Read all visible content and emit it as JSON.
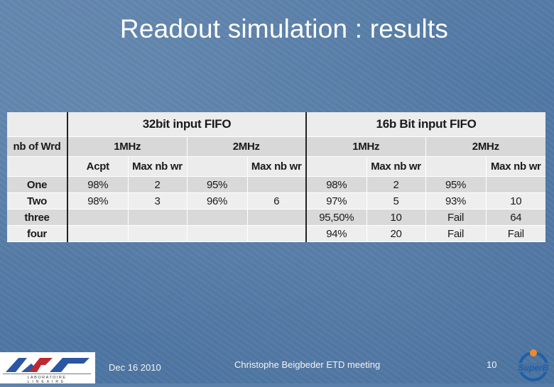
{
  "slide": {
    "title": "Readout simulation : results"
  },
  "table": {
    "group_headers": [
      "32bit input FIFO",
      "16b Bit input FIFO"
    ],
    "row_label_header": "nb of Wrd",
    "freq_headers": [
      "1MHz",
      "2MHz",
      "1MHz",
      "2MHz"
    ],
    "sub_headers": [
      "Acpt",
      "Max nb wr",
      "",
      "Max nb wr",
      "",
      "Max nb wr",
      "",
      "Max nb wr"
    ],
    "rows": [
      {
        "label": "One",
        "cells": [
          "98%",
          "2",
          "95%",
          "",
          "98%",
          "2",
          "95%",
          ""
        ]
      },
      {
        "label": "Two",
        "cells": [
          "98%",
          "3",
          "96%",
          "6",
          "97%",
          "5",
          "93%",
          "10"
        ]
      },
      {
        "label": "three",
        "cells": [
          "",
          "",
          "",
          "",
          "95,50%",
          "10",
          "Fail",
          "64"
        ]
      },
      {
        "label": "four",
        "cells": [
          "",
          "",
          "",
          "",
          "94%",
          "20",
          "Fail",
          "Fail"
        ]
      }
    ]
  },
  "footer": {
    "date": "Dec 16  2010",
    "meeting": "Christophe Beigbeder ETD meeting",
    "page": "10"
  },
  "logos": {
    "left_abbrev": "LAL",
    "left_text": "LABORATOIRE DE L'ACCELERATEUR LINEAIRE",
    "right_text": "SuperB"
  },
  "colors": {
    "background": "#527aa6",
    "table_light": "#ececec",
    "table_dark": "#d9d9d9",
    "superb_blue": "#1f5fa8",
    "superb_orange": "#f08a24",
    "lal_blue": "#2b56a3",
    "lal_red": "#c0282f"
  }
}
